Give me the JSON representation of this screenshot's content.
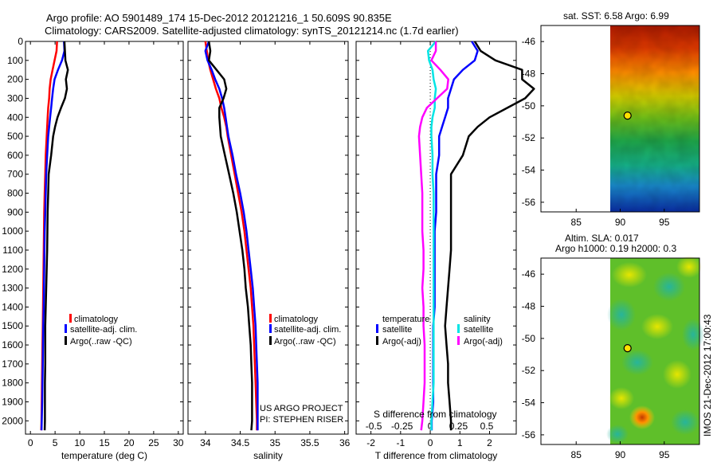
{
  "title_line1": "Argo profile: AO 5901489_174 15-Dec-2012 20121216_1 50.609S 90.835E",
  "title_line2": "Climatology: CARS2009. Satellite-adjusted climatology: synTS_20121214.nc (1.7d earlier)",
  "y_ticks": [
    0,
    100,
    200,
    300,
    400,
    500,
    600,
    700,
    800,
    900,
    1000,
    1100,
    1200,
    1300,
    1400,
    1500,
    1600,
    1700,
    1800,
    1900,
    2000
  ],
  "colors": {
    "climatology": "#ff0000",
    "satellite": "#0000ff",
    "argo": "#000000",
    "sat_s": "#00e5e5",
    "argo_s": "#ff00ff"
  },
  "panel_temperature": {
    "xlabel": "temperature (deg C)",
    "xlim": [
      -1,
      31
    ],
    "ylim": [
      0,
      2070
    ],
    "x_ticks": [
      0,
      5,
      10,
      15,
      20,
      25,
      30
    ],
    "legend": [
      "climatology",
      "satellite-adj. clim.",
      "Argo(..raw -QC)"
    ]
  },
  "panel_salinity": {
    "xlabel": "salinity",
    "xlim": [
      33.75,
      36.05
    ],
    "ylim": [
      0,
      2070
    ],
    "x_ticks": [
      "34",
      "34.5",
      "35",
      "35.5",
      "36"
    ],
    "x_tick_values": [
      34,
      34.5,
      35,
      35.5,
      36
    ],
    "legend": [
      "climatology",
      "satellite-adj. clim.",
      "Argo(..raw -QC)"
    ],
    "credit_line1": "US ARGO PROJECT",
    "credit_line2": "PI: STEPHEN RISER"
  },
  "panel_difference": {
    "xlabel": "T difference from climatology",
    "xlim": [
      -2.5,
      2.9
    ],
    "ylim": [
      0,
      2070
    ],
    "x_ticks": [
      "-2",
      "-1",
      "0",
      "1",
      "2"
    ],
    "x_tick_values": [
      -2,
      -1,
      0,
      1,
      2
    ],
    "s_label": "S difference from climatology",
    "s_ticks": [
      "-0.5",
      "-0.25",
      "0",
      "0.25",
      "0.5"
    ],
    "s_tick_values": [
      -1.905,
      -0.952,
      0,
      0.952,
      1.905
    ],
    "legend_temp_header": "temperature",
    "legend_sal_header": "salinity",
    "legend_temp": [
      "satellite",
      "Argo(-adj)"
    ],
    "legend_sal": [
      "satellite",
      "Argo(-adj)"
    ]
  },
  "map_sst": {
    "title": "sat. SST: 6.58 Argo: 6.99",
    "lat_ticks": [
      "-46",
      "-48",
      "-50",
      "-52",
      "-54",
      "-56"
    ],
    "lon_ticks": [
      "85",
      "90",
      "95"
    ],
    "float_lon": 90.835,
    "float_lat": -50.609
  },
  "map_sla": {
    "title_line1": "Altim. SLA: 0.017",
    "title_line2": "Argo h1000: 0.19 h2000: 0.3",
    "lat_ticks": [
      "-46",
      "-48",
      "-50",
      "-52",
      "-54",
      "-56"
    ],
    "lon_ticks": [
      "85",
      "90",
      "95"
    ],
    "float_lon": 90.835,
    "float_lat": -50.609
  },
  "footer_stamp": "IMOS 21-Dec-2012 17:00:43",
  "chart_data": {
    "type": "line",
    "depth": [
      0,
      50,
      100,
      150,
      200,
      250,
      300,
      350,
      400,
      450,
      500,
      600,
      700,
      800,
      900,
      1000,
      1100,
      1200,
      1300,
      1400,
      1500,
      1600,
      1700,
      1800,
      1900,
      2000,
      2050
    ],
    "temperature": {
      "climatology": [
        5.4,
        5.3,
        4.9,
        4.5,
        4.1,
        3.9,
        3.8,
        3.6,
        3.5,
        3.4,
        3.3,
        3.1,
        3.0,
        2.9,
        2.8,
        2.75,
        2.7,
        2.65,
        2.6,
        2.55,
        2.5,
        2.45,
        2.4,
        2.35,
        2.3,
        2.25,
        2.2
      ],
      "satellite": [
        6.8,
        6.9,
        6.4,
        5.6,
        4.9,
        4.6,
        4.4,
        4.2,
        4.0,
        3.8,
        3.6,
        3.4,
        3.2,
        3.1,
        3.0,
        2.9,
        2.85,
        2.8,
        2.75,
        2.7,
        2.6,
        2.55,
        2.5,
        2.45,
        2.4,
        2.3,
        2.25
      ],
      "argo": [
        6.9,
        7.0,
        7.1,
        7.6,
        7.2,
        7.4,
        7.0,
        6.2,
        5.5,
        5.0,
        4.6,
        4.2,
        3.7,
        3.6,
        3.5,
        3.45,
        3.4,
        3.3,
        3.2,
        3.1,
        3.0,
        3.0,
        3.0,
        2.95,
        2.95,
        2.95,
        2.9
      ]
    },
    "salinity": {
      "climatology": [
        34.0,
        34.02,
        34.04,
        34.07,
        34.11,
        34.15,
        34.2,
        34.23,
        34.27,
        34.3,
        34.32,
        34.37,
        34.42,
        34.47,
        34.52,
        34.56,
        34.59,
        34.62,
        34.65,
        34.67,
        34.69,
        34.7,
        34.71,
        34.72,
        34.73,
        34.74,
        34.74
      ],
      "satellite": [
        34.05,
        34.0,
        34.03,
        34.09,
        34.14,
        34.2,
        34.24,
        34.27,
        34.29,
        34.31,
        34.33,
        34.39,
        34.44,
        34.5,
        34.55,
        34.59,
        34.62,
        34.65,
        34.68,
        34.7,
        34.72,
        34.73,
        34.74,
        34.75,
        34.75,
        34.75,
        34.75
      ],
      "argo": [
        34.05,
        34.07,
        34.05,
        34.16,
        34.27,
        34.3,
        34.26,
        34.2,
        34.2,
        34.21,
        34.22,
        34.28,
        34.34,
        34.4,
        34.45,
        34.49,
        34.53,
        34.56,
        34.58,
        34.61,
        34.63,
        34.65,
        34.66,
        34.67,
        34.67,
        34.67,
        34.66
      ]
    },
    "t_difference": {
      "satellite": [
        1.4,
        1.6,
        1.5,
        1.1,
        0.8,
        0.7,
        0.6,
        0.6,
        0.5,
        0.4,
        0.3,
        0.3,
        0.2,
        0.2,
        0.2,
        0.15,
        0.15,
        0.15,
        0.15,
        0.15,
        0.1,
        0.1,
        0.1,
        0.1,
        0.1,
        0.05,
        0.05
      ],
      "argo": [
        1.5,
        1.7,
        2.2,
        3.1,
        3.1,
        3.5,
        3.2,
        2.6,
        2.0,
        1.6,
        1.3,
        1.1,
        0.7,
        0.7,
        0.7,
        0.7,
        0.7,
        0.65,
        0.6,
        0.55,
        0.5,
        0.55,
        0.6,
        0.6,
        0.65,
        0.7,
        0.7
      ]
    },
    "s_difference": {
      "satellite": [
        0.05,
        -0.02,
        -0.01,
        0.02,
        0.03,
        0.05,
        0.04,
        0.04,
        0.02,
        0.01,
        0.01,
        0.02,
        0.02,
        0.03,
        0.03,
        0.03,
        0.03,
        0.03,
        0.03,
        0.03,
        0.03,
        0.03,
        0.03,
        0.03,
        0.02,
        0.01,
        0.01
      ],
      "argo": [
        0.05,
        0.05,
        0.01,
        0.09,
        0.16,
        0.15,
        0.06,
        -0.03,
        -0.07,
        -0.09,
        -0.1,
        -0.09,
        -0.08,
        -0.07,
        -0.07,
        -0.07,
        -0.06,
        -0.06,
        -0.07,
        -0.06,
        -0.06,
        -0.05,
        -0.05,
        -0.05,
        -0.06,
        -0.07,
        -0.08
      ]
    }
  }
}
